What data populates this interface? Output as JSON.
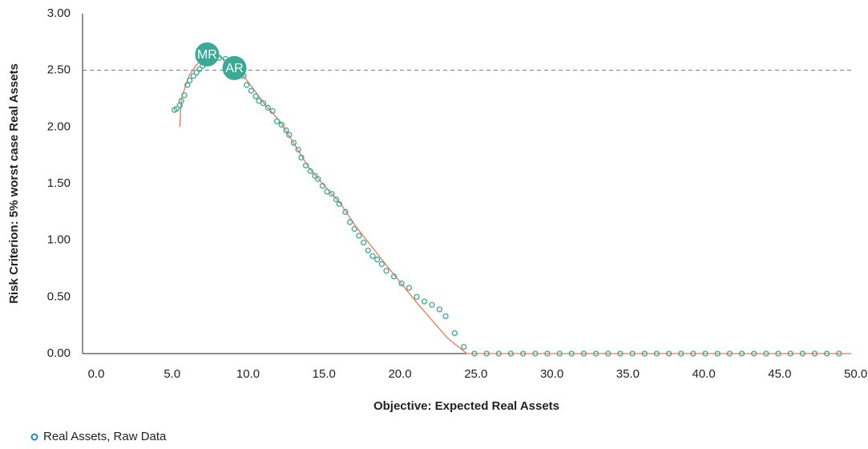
{
  "chart_data": {
    "type": "scatter",
    "xlabel": "Objective: Expected Real Assets",
    "ylabel": "Risk Criterion: 5% worst case Real Assets",
    "xlim": [
      0,
      50.6
    ],
    "ylim": [
      0,
      3
    ],
    "xticks": [
      {
        "value": 0,
        "label": "0.0"
      },
      {
        "value": 5,
        "label": "5.0"
      },
      {
        "value": 10,
        "label": "10.0"
      },
      {
        "value": 15,
        "label": "15.0"
      },
      {
        "value": 20,
        "label": "20.0"
      },
      {
        "value": 25,
        "label": "25.0"
      },
      {
        "value": 30,
        "label": "30.0"
      },
      {
        "value": 35,
        "label": "35.0"
      },
      {
        "value": 40,
        "label": "40.0"
      },
      {
        "value": 45,
        "label": "45.0"
      },
      {
        "value": 50,
        "label": "50.0"
      }
    ],
    "yticks": [
      {
        "value": 0,
        "label": "0.00"
      },
      {
        "value": 0.5,
        "label": "0.50"
      },
      {
        "value": 1,
        "label": "1.00"
      },
      {
        "value": 1.5,
        "label": "1.50"
      },
      {
        "value": 2,
        "label": "2.00"
      },
      {
        "value": 2.5,
        "label": "2.50"
      },
      {
        "value": 3,
        "label": "3.00"
      }
    ],
    "reference_line": {
      "y": 2.5,
      "color": "#777777",
      "dashed": true
    },
    "series": [
      {
        "name": "Real Assets, Raw Data",
        "color": "#3aaa96",
        "legend_color": "#1f8ac4",
        "x": [
          6.05,
          6.2,
          6.4,
          6.5,
          6.7,
          6.9,
          7.05,
          7.3,
          7.5,
          7.7,
          7.9,
          8.1,
          8.5,
          9.0,
          9.4,
          9.7,
          10.2,
          10.6,
          10.8,
          11.1,
          11.4,
          11.6,
          11.9,
          12.2,
          12.5,
          12.8,
          13.1,
          13.4,
          13.6,
          13.9,
          14.2,
          14.4,
          14.7,
          15.0,
          15.3,
          15.5,
          15.8,
          16.1,
          16.4,
          16.7,
          16.9,
          17.3,
          17.6,
          17.9,
          18.2,
          18.5,
          18.8,
          19.1,
          19.4,
          19.7,
          20.0,
          20.5,
          21.0,
          21.5,
          22.0,
          22.5,
          23.0,
          23.5,
          23.9,
          24.5,
          25.1,
          25.8,
          26.6,
          27.4,
          28.2,
          29.0,
          29.8,
          30.6,
          31.4,
          32.2,
          33.0,
          33.8,
          34.6,
          35.4,
          36.2,
          37.0,
          37.8,
          38.6,
          39.4,
          40.2,
          41.0,
          41.8,
          42.6,
          43.4,
          44.2,
          45.0,
          45.8,
          46.6,
          47.4,
          48.2,
          49.0,
          49.8
        ],
        "values": [
          2.15,
          2.16,
          2.19,
          2.23,
          2.28,
          2.37,
          2.41,
          2.45,
          2.48,
          2.51,
          2.54,
          2.58,
          2.61,
          2.61,
          2.6,
          2.56,
          2.5,
          2.45,
          2.37,
          2.32,
          2.27,
          2.23,
          2.21,
          2.17,
          2.14,
          2.05,
          2.02,
          1.97,
          1.93,
          1.86,
          1.8,
          1.73,
          1.66,
          1.61,
          1.57,
          1.54,
          1.48,
          1.43,
          1.41,
          1.36,
          1.32,
          1.25,
          1.16,
          1.1,
          1.04,
          0.98,
          0.91,
          0.86,
          0.83,
          0.79,
          0.73,
          0.68,
          0.62,
          0.58,
          0.5,
          0.46,
          0.43,
          0.39,
          0.33,
          0.18,
          0.06,
          0,
          0,
          0,
          0,
          0,
          0,
          0,
          0,
          0,
          0,
          0,
          0,
          0,
          0,
          0,
          0,
          0,
          0,
          0,
          0,
          0,
          0,
          0,
          0,
          0,
          0,
          0,
          0,
          0,
          0,
          0
        ]
      }
    ],
    "fit": {
      "color": "#f07850",
      "x": [
        6.4,
        6.5,
        7.0,
        7.5,
        8.0,
        9.0,
        10.0,
        11.0,
        12.0,
        13.0,
        15.0,
        17.0,
        18.0,
        20.0,
        22.0,
        24.0,
        25.3,
        50.6
      ],
      "values": [
        2.0,
        2.25,
        2.45,
        2.55,
        2.6,
        2.62,
        2.55,
        2.38,
        2.2,
        2.05,
        1.62,
        1.32,
        1.12,
        0.78,
        0.45,
        0.14,
        0,
        0
      ]
    },
    "annotations": [
      {
        "text": "MR",
        "x": 8.2,
        "y": 2.64,
        "color": "#3aaa96"
      },
      {
        "text": "AR",
        "x": 10.0,
        "y": 2.52,
        "color": "#3aaa96"
      }
    ]
  }
}
